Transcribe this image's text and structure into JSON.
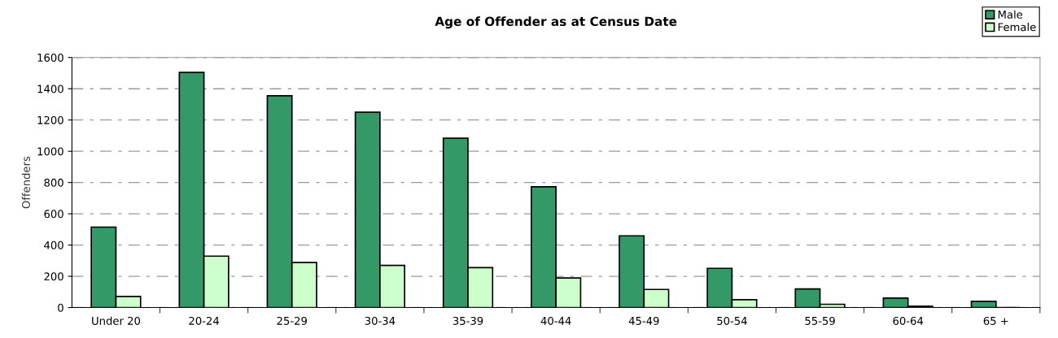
{
  "chart_data": {
    "type": "bar",
    "title": "Age of Offender as at Census Date",
    "ylabel": "Offenders",
    "categories": [
      "Under 20",
      "20-24",
      "25-29",
      "30-34",
      "35-39",
      "40-44",
      "45-49",
      "50-54",
      "55-59",
      "60-64",
      "65 +"
    ],
    "series": [
      {
        "name": "Male",
        "color": "#339966",
        "values": [
          515,
          1504,
          1355,
          1250,
          1083,
          773,
          459,
          251,
          119,
          61,
          40
        ]
      },
      {
        "name": "Female",
        "color": "#ccffcc",
        "values": [
          71,
          329,
          288,
          270,
          256,
          189,
          116,
          50,
          21,
          9,
          null
        ]
      }
    ],
    "ylim": [
      0,
      1600
    ],
    "yticks": [
      0,
      200,
      400,
      600,
      800,
      1000,
      1200,
      1400,
      1600
    ],
    "grid": "y",
    "legend": "top right"
  }
}
